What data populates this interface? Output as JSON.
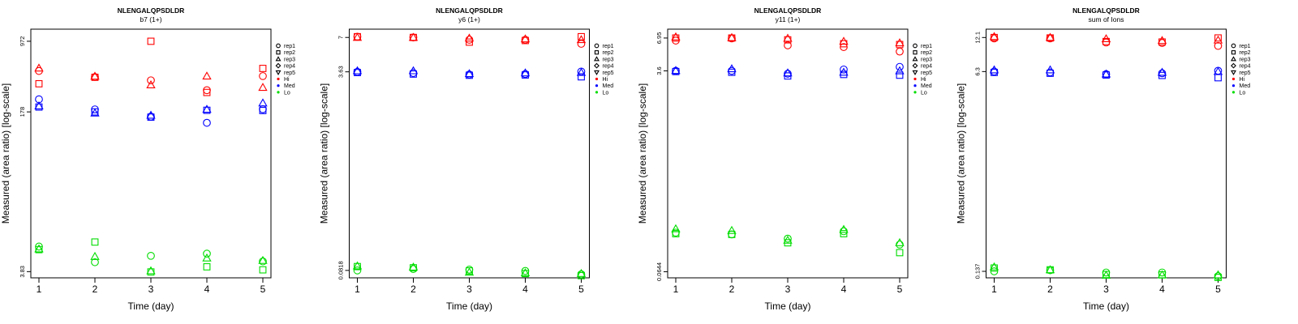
{
  "chart_data": [
    {
      "type": "scatter",
      "title": "NLENGALQPSDLDR",
      "subtitle": "b7 (1+)",
      "xlabel": "Time (day)",
      "ylabel": "Measured (area ratio) [log-scale]",
      "y_scale": "log",
      "x_ticks": [
        "1",
        "2",
        "3",
        "4",
        "5"
      ],
      "y_ticks": [
        {
          "label": "3.83",
          "value": 3.83
        },
        {
          "label": "178",
          "value": 178
        },
        {
          "label": "972",
          "value": 972
        }
      ],
      "ylim": [
        3.3,
        1300
      ],
      "legend_position": "right",
      "series": [
        {
          "name": "Hi",
          "rep": "rep1",
          "x": [
            1,
            2,
            3,
            4,
            5
          ],
          "y": [
            476,
            411,
            380,
            300,
            421
          ]
        },
        {
          "name": "Hi",
          "rep": "rep2",
          "x": [
            1,
            2,
            3,
            4,
            5
          ],
          "y": [
            350,
            409,
            972,
            284,
            506
          ]
        },
        {
          "name": "Hi",
          "rep": "rep3",
          "x": [
            1,
            2,
            3,
            4,
            5
          ],
          "y": [
            509,
            419,
            340,
            420,
            320
          ]
        },
        {
          "name": "Med",
          "rep": "rep1",
          "x": [
            1,
            2,
            3,
            4,
            5
          ],
          "y": [
            241,
            189,
            159,
            137,
            190
          ]
        },
        {
          "name": "Med",
          "rep": "rep2",
          "x": [
            1,
            2,
            3,
            4,
            5
          ],
          "y": [
            200,
            178,
            157,
            185,
            184
          ]
        },
        {
          "name": "Med",
          "rep": "rep3",
          "x": [
            1,
            2,
            3,
            4,
            5
          ],
          "y": [
            205,
            173,
            164,
            189,
            220
          ]
        },
        {
          "name": "Lo",
          "rep": "rep1",
          "x": [
            1,
            2,
            3,
            4,
            5
          ],
          "y": [
            7.0,
            4.8,
            5.6,
            5.9,
            4.9
          ]
        },
        {
          "name": "Lo",
          "rep": "rep2",
          "x": [
            1,
            2,
            3,
            4,
            5
          ],
          "y": [
            6.5,
            7.8,
            3.8,
            4.3,
            4.0
          ]
        },
        {
          "name": "Lo",
          "rep": "rep3",
          "x": [
            1,
            2,
            3,
            4,
            5
          ],
          "y": [
            6.6,
            5.5,
            3.9,
            5.3,
            5.0
          ]
        }
      ]
    },
    {
      "type": "scatter",
      "title": "NLENGALQPSDLDR",
      "subtitle": "y6 (1+)",
      "xlabel": "Time (day)",
      "ylabel": "Measured (area ratio) [log-scale]",
      "y_scale": "log",
      "x_ticks": [
        "1",
        "2",
        "3",
        "4",
        "5"
      ],
      "y_ticks": [
        {
          "label": "0.0818",
          "value": 0.0818
        },
        {
          "label": "3.63",
          "value": 3.63
        },
        {
          "label": "7",
          "value": 7
        }
      ],
      "ylim": [
        0.071,
        8.2
      ],
      "legend_position": "right",
      "series": [
        {
          "name": "Hi",
          "rep": "rep1",
          "x": [
            1,
            2,
            3,
            4,
            5
          ],
          "y": [
            7.1,
            7.0,
            6.7,
            6.7,
            6.2
          ]
        },
        {
          "name": "Hi",
          "rep": "rep2",
          "x": [
            1,
            2,
            3,
            4,
            5
          ],
          "y": [
            7.1,
            7.0,
            6.4,
            6.6,
            7.1
          ]
        },
        {
          "name": "Hi",
          "rep": "rep3",
          "x": [
            1,
            2,
            3,
            4,
            5
          ],
          "y": [
            7.0,
            7.0,
            6.9,
            6.8,
            6.7
          ]
        },
        {
          "name": "Med",
          "rep": "rep1",
          "x": [
            1,
            2,
            3,
            4,
            5
          ],
          "y": [
            3.63,
            3.55,
            3.45,
            3.48,
            3.65
          ]
        },
        {
          "name": "Med",
          "rep": "rep2",
          "x": [
            1,
            2,
            3,
            4,
            5
          ],
          "y": [
            3.58,
            3.48,
            3.4,
            3.42,
            3.3
          ]
        },
        {
          "name": "Med",
          "rep": "rep3",
          "x": [
            1,
            2,
            3,
            4,
            5
          ],
          "y": [
            3.7,
            3.7,
            3.5,
            3.55,
            3.58
          ]
        },
        {
          "name": "Lo",
          "rep": "rep1",
          "x": [
            1,
            2,
            3,
            4,
            5
          ],
          "y": [
            0.0818,
            0.084,
            0.083,
            0.081,
            0.076
          ]
        },
        {
          "name": "Lo",
          "rep": "rep2",
          "x": [
            1,
            2,
            3,
            4,
            5
          ],
          "y": [
            0.088,
            0.086,
            0.081,
            0.077,
            0.074
          ]
        },
        {
          "name": "Lo",
          "rep": "rep3",
          "x": [
            1,
            2,
            3,
            4,
            5
          ],
          "y": [
            0.089,
            0.087,
            0.079,
            0.078,
            0.077
          ]
        }
      ]
    },
    {
      "type": "scatter",
      "title": "NLENGALQPSDLDR",
      "subtitle": "y11 (1+)",
      "xlabel": "Time (day)",
      "ylabel": "Measured (area ratio) [log-scale]",
      "y_scale": "log",
      "x_ticks": [
        "1",
        "2",
        "3",
        "4",
        "5"
      ],
      "y_ticks": [
        {
          "label": "0.0644",
          "value": 0.0644
        },
        {
          "label": "3.6",
          "value": 3.6
        },
        {
          "label": "6.95",
          "value": 6.95
        }
      ],
      "ylim": [
        0.057,
        8.3
      ],
      "legend_position": "right",
      "series": [
        {
          "name": "Hi",
          "rep": "rep1",
          "x": [
            1,
            2,
            3,
            4,
            5
          ],
          "y": [
            6.6,
            6.9,
            6.0,
            5.8,
            5.3
          ]
        },
        {
          "name": "Hi",
          "rep": "rep2",
          "x": [
            1,
            2,
            3,
            4,
            5
          ],
          "y": [
            6.95,
            6.95,
            6.7,
            6.2,
            6.1
          ]
        },
        {
          "name": "Hi",
          "rep": "rep3",
          "x": [
            1,
            2,
            3,
            4,
            5
          ],
          "y": [
            7.1,
            7.0,
            6.9,
            6.5,
            6.3
          ]
        },
        {
          "name": "Med",
          "rep": "rep1",
          "x": [
            1,
            2,
            3,
            4,
            5
          ],
          "y": [
            3.6,
            3.6,
            3.4,
            3.7,
            3.9
          ]
        },
        {
          "name": "Med",
          "rep": "rep2",
          "x": [
            1,
            2,
            3,
            4,
            5
          ],
          "y": [
            3.55,
            3.5,
            3.25,
            3.35,
            3.3
          ]
        },
        {
          "name": "Med",
          "rep": "rep3",
          "x": [
            1,
            2,
            3,
            4,
            5
          ],
          "y": [
            3.62,
            3.75,
            3.45,
            3.5,
            3.6
          ]
        },
        {
          "name": "Lo",
          "rep": "rep1",
          "x": [
            1,
            2,
            3,
            4,
            5
          ],
          "y": [
            0.141,
            0.136,
            0.125,
            0.145,
            0.111
          ]
        },
        {
          "name": "Lo",
          "rep": "rep2",
          "x": [
            1,
            2,
            3,
            4,
            5
          ],
          "y": [
            0.138,
            0.136,
            0.115,
            0.138,
            0.0944
          ]
        },
        {
          "name": "Lo",
          "rep": "rep3",
          "x": [
            1,
            2,
            3,
            4,
            5
          ],
          "y": [
            0.152,
            0.147,
            0.121,
            0.15,
            0.115
          ]
        }
      ]
    },
    {
      "type": "scatter",
      "title": "NLENGALQPSDLDR",
      "subtitle": "sum of Ions",
      "xlabel": "Time (day)",
      "ylabel": "Measured (area ratio) [log-scale]",
      "y_scale": "log",
      "x_ticks": [
        "1",
        "2",
        "3",
        "4",
        "5"
      ],
      "y_ticks": [
        {
          "label": "0.137",
          "value": 0.137
        },
        {
          "label": "6.3",
          "value": 6.3
        },
        {
          "label": "12.1",
          "value": 12.1
        }
      ],
      "ylim": [
        0.121,
        14.2
      ],
      "legend_position": "right",
      "series": [
        {
          "name": "Hi",
          "rep": "rep1",
          "x": [
            1,
            2,
            3,
            4,
            5
          ],
          "y": [
            11.9,
            11.9,
            11.0,
            10.9,
            10.3
          ]
        },
        {
          "name": "Hi",
          "rep": "rep2",
          "x": [
            1,
            2,
            3,
            4,
            5
          ],
          "y": [
            12.1,
            12.0,
            11.2,
            11.1,
            12.0
          ]
        },
        {
          "name": "Hi",
          "rep": "rep3",
          "x": [
            1,
            2,
            3,
            4,
            5
          ],
          "y": [
            12.3,
            12.1,
            11.8,
            11.4,
            11.5
          ]
        },
        {
          "name": "Med",
          "rep": "rep1",
          "x": [
            1,
            2,
            3,
            4,
            5
          ],
          "y": [
            6.3,
            6.2,
            6.0,
            6.1,
            6.4
          ]
        },
        {
          "name": "Med",
          "rep": "rep2",
          "x": [
            1,
            2,
            3,
            4,
            5
          ],
          "y": [
            6.2,
            6.1,
            5.9,
            5.85,
            5.6
          ]
        },
        {
          "name": "Med",
          "rep": "rep3",
          "x": [
            1,
            2,
            3,
            4,
            5
          ],
          "y": [
            6.5,
            6.5,
            6.0,
            6.2,
            6.3
          ]
        },
        {
          "name": "Lo",
          "rep": "rep1",
          "x": [
            1,
            2,
            3,
            4,
            5
          ],
          "y": [
            0.137,
            0.14,
            0.134,
            0.134,
            0.125
          ]
        },
        {
          "name": "Lo",
          "rep": "rep2",
          "x": [
            1,
            2,
            3,
            4,
            5
          ],
          "y": [
            0.146,
            0.141,
            0.129,
            0.128,
            0.122
          ]
        },
        {
          "name": "Lo",
          "rep": "rep3",
          "x": [
            1,
            2,
            3,
            4,
            5
          ],
          "y": [
            0.149,
            0.141,
            0.127,
            0.128,
            0.128
          ]
        }
      ]
    }
  ],
  "legend": {
    "reps": [
      "rep1",
      "rep2",
      "rep3",
      "rep4",
      "rep5"
    ],
    "levels": [
      "Hi",
      "Med",
      "Lo"
    ]
  },
  "colors": {
    "Hi": "#ff0000",
    "Med": "#0000ff",
    "Lo": "#00dd00",
    "axis": "#000000"
  },
  "marker_shapes": {
    "rep1": "circle",
    "rep2": "square",
    "rep3": "triangle-up",
    "rep4": "diamond",
    "rep5": "triangle-down"
  }
}
